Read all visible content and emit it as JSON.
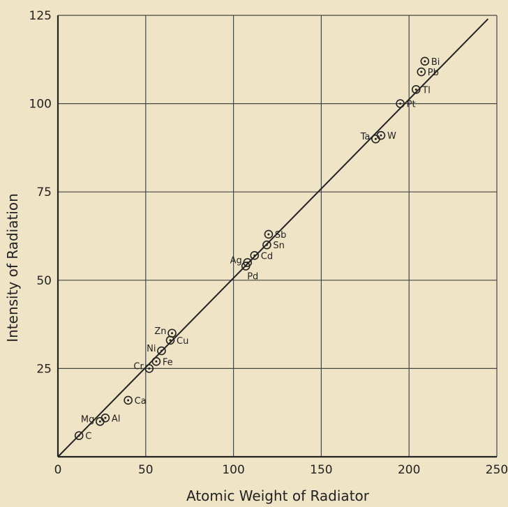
{
  "chart_data": {
    "type": "scatter",
    "title": "",
    "xlabel": "Atomic Weight of Radiator",
    "ylabel": "Intensity of Radiation",
    "xlim": [
      0,
      250
    ],
    "ylim": [
      0,
      125
    ],
    "xticks": [
      0,
      50,
      100,
      150,
      200,
      250
    ],
    "yticks": [
      25,
      50,
      75,
      100,
      125
    ],
    "grid": true,
    "legend": "none",
    "colors": {
      "background": "#efe4c6",
      "ink": "#222222",
      "grid": "#444444"
    },
    "fit_line": {
      "x": [
        0,
        245
      ],
      "y": [
        0,
        124
      ]
    },
    "points": [
      {
        "label": "C",
        "x": 12,
        "y": 6,
        "label_side": "right"
      },
      {
        "label": "Mg",
        "x": 24,
        "y": 10,
        "label_side": "left"
      },
      {
        "label": "Al",
        "x": 27,
        "y": 11,
        "label_side": "right"
      },
      {
        "label": "Ca",
        "x": 40,
        "y": 16,
        "label_side": "right"
      },
      {
        "label": "Cr",
        "x": 52,
        "y": 25,
        "label_side": "left"
      },
      {
        "label": "Fe",
        "x": 56,
        "y": 27,
        "label_side": "right"
      },
      {
        "label": "Ni",
        "x": 59,
        "y": 30,
        "label_side": "left"
      },
      {
        "label": "Cu",
        "x": 64,
        "y": 33,
        "label_side": "right"
      },
      {
        "label": "Zn",
        "x": 65,
        "y": 35,
        "label_side": "left"
      },
      {
        "label": "Ag",
        "x": 108,
        "y": 55,
        "label_side": "left"
      },
      {
        "label": "Pd",
        "x": 107,
        "y": 54,
        "label_side": "below-right"
      },
      {
        "label": "Cd",
        "x": 112,
        "y": 57,
        "label_side": "right"
      },
      {
        "label": "Sn",
        "x": 119,
        "y": 60,
        "label_side": "right"
      },
      {
        "label": "Sb",
        "x": 120,
        "y": 63,
        "label_side": "right"
      },
      {
        "label": "Ta",
        "x": 181,
        "y": 90,
        "label_side": "left"
      },
      {
        "label": "W",
        "x": 184,
        "y": 91,
        "label_side": "right"
      },
      {
        "label": "Pt",
        "x": 195,
        "y": 100,
        "label_side": "right"
      },
      {
        "label": "Tl",
        "x": 204,
        "y": 104,
        "label_side": "right"
      },
      {
        "label": "Pb",
        "x": 207,
        "y": 109,
        "label_side": "right"
      },
      {
        "label": "Bi",
        "x": 209,
        "y": 112,
        "label_side": "right"
      }
    ]
  }
}
